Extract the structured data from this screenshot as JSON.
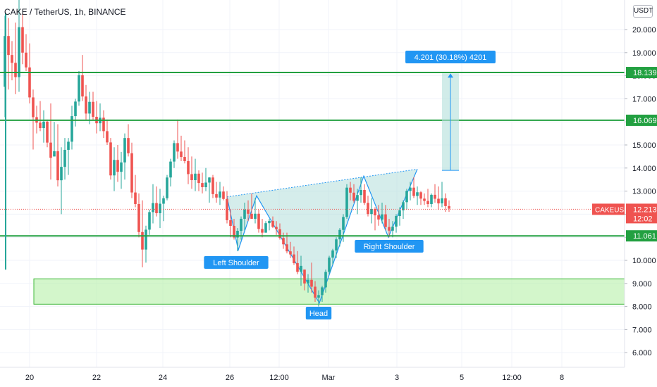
{
  "header": {
    "title": "CAKE / TetherUS, 1h, BINANCE",
    "currency_button": "USDT"
  },
  "chart_data": {
    "type": "candlestick",
    "title": "CAKE / TetherUS, 1h, BINANCE",
    "ylim": [
      5.5,
      21.2
    ],
    "y_ticks": [
      6,
      7,
      8,
      9,
      10,
      11,
      12,
      13,
      14,
      15,
      16,
      17,
      18,
      19,
      20
    ],
    "y_tick_labels": [
      "6.000",
      "7.000",
      "8.000",
      "9.000",
      "10.000",
      "11.000",
      "12.000",
      "13.000",
      "14.000",
      "15.000",
      "16.000",
      "17.000",
      "18.000",
      "19.000",
      "20.000"
    ],
    "x_tick_labels": [
      "20",
      "22",
      "24",
      "26",
      "12:00",
      "Mar",
      "3",
      "5",
      "12:00",
      "8"
    ],
    "horizontal_levels": [
      {
        "value": 18.139,
        "label": "18.139"
      },
      {
        "value": 16.069,
        "label": "16.069"
      },
      {
        "value": 11.061,
        "label": "11.061"
      }
    ],
    "support_zone": {
      "from": 8.1,
      "to": 9.2
    },
    "last_price": {
      "symbol": "CAKEUSDT",
      "value": 12.213,
      "label": "12.213",
      "countdown": "12:02"
    },
    "measure": {
      "from": 13.9,
      "to": 18.1,
      "label": "4.201 (30.18%) 4201"
    },
    "pattern_labels": [
      "Left Shoulder",
      "Head",
      "Right Shoulder"
    ],
    "candles": [
      [
        7,
        20.6,
        16.2
      ],
      [
        12,
        20.5,
        17.4
      ],
      [
        17,
        19.5,
        17.8
      ],
      [
        22,
        20.3,
        17.2
      ],
      [
        27,
        21.5,
        17.3
      ],
      [
        32,
        20.7,
        18.5
      ],
      [
        37,
        19.8,
        18.2
      ],
      [
        42,
        19.4,
        16.8
      ],
      [
        47,
        17.4,
        14.8
      ],
      [
        52,
        16.7,
        15.5
      ],
      [
        57,
        16.9,
        15.6
      ],
      [
        62,
        16.5,
        15.1
      ],
      [
        67,
        16.1,
        14.9
      ],
      [
        72,
        16.8,
        13.5
      ],
      [
        77,
        16.0,
        14.5
      ],
      [
        82,
        15.9,
        13.2
      ],
      [
        87,
        14.9,
        12.0
      ],
      [
        92,
        15.3,
        13.5
      ],
      [
        97,
        15.3,
        13.7
      ],
      [
        102,
        16.7,
        14.8
      ],
      [
        107,
        17.0,
        15.8
      ],
      [
        112,
        18.2,
        16.7
      ],
      [
        117,
        18.9,
        16.9
      ],
      [
        122,
        17.6,
        16.1
      ],
      [
        127,
        17.3,
        15.9
      ],
      [
        132,
        17.3,
        16.1
      ],
      [
        137,
        16.9,
        15.5
      ],
      [
        142,
        16.8,
        15.6
      ],
      [
        147,
        16.5,
        15.3
      ],
      [
        152,
        16.1,
        15.0
      ],
      [
        157,
        15.3,
        13.5
      ],
      [
        162,
        14.9,
        13.0
      ],
      [
        167,
        15.0,
        13.4
      ],
      [
        172,
        14.7,
        13.1
      ],
      [
        177,
        15.5,
        13.5
      ],
      [
        182,
        15.9,
        14.5
      ],
      [
        187,
        15.1,
        12.7
      ],
      [
        192,
        13.7,
        12.3
      ],
      [
        197,
        12.9,
        11.0
      ],
      [
        202,
        12.6,
        9.7
      ],
      [
        207,
        11.5,
        9.9
      ],
      [
        212,
        12.2,
        11.1
      ],
      [
        217,
        13.3,
        11.6
      ],
      [
        222,
        13.2,
        11.9
      ],
      [
        227,
        13.1,
        11.4
      ],
      [
        232,
        12.8,
        11.7
      ],
      [
        237,
        13.7,
        12.6
      ],
      [
        242,
        14.4,
        13.2
      ],
      [
        247,
        15.2,
        14.0
      ],
      [
        252,
        16.1,
        14.4
      ],
      [
        257,
        15.4,
        14.3
      ],
      [
        262,
        15.2,
        14.2
      ],
      [
        267,
        14.9,
        13.3
      ],
      [
        272,
        14.5,
        13.1
      ],
      [
        277,
        14.4,
        13.0
      ],
      [
        282,
        13.9,
        13.0
      ],
      [
        287,
        13.8,
        12.9
      ],
      [
        292,
        14.0,
        13.0
      ],
      [
        297,
        13.6,
        12.5
      ],
      [
        302,
        13.7,
        12.7
      ],
      [
        307,
        13.4,
        12.5
      ],
      [
        312,
        13.4,
        12.4
      ],
      [
        317,
        13.2,
        12.6
      ],
      [
        322,
        13.0,
        11.6
      ],
      [
        327,
        12.2,
        11.0
      ],
      [
        332,
        11.8,
        10.9
      ],
      [
        337,
        11.4,
        10.4
      ],
      [
        342,
        11.9,
        10.9
      ],
      [
        347,
        12.5,
        11.3
      ],
      [
        352,
        12.6,
        11.7
      ],
      [
        357,
        12.9,
        11.8
      ],
      [
        362,
        12.7,
        11.6
      ],
      [
        367,
        12.2,
        11.2
      ],
      [
        372,
        11.8,
        11.0
      ],
      [
        377,
        11.7,
        11.2
      ],
      [
        382,
        11.8,
        11.3
      ],
      [
        387,
        11.9,
        11.4
      ],
      [
        392,
        11.7,
        11.1
      ],
      [
        397,
        11.6,
        10.9
      ],
      [
        402,
        11.2,
        10.5
      ],
      [
        407,
        11.2,
        10.3
      ],
      [
        412,
        10.8,
        10.1
      ],
      [
        417,
        10.6,
        9.8
      ],
      [
        422,
        10.4,
        9.4
      ],
      [
        427,
        10.2,
        8.9
      ],
      [
        432,
        9.6,
        8.7
      ],
      [
        437,
        9.4,
        8.6
      ],
      [
        442,
        9.9,
        8.6
      ],
      [
        447,
        9.1,
        8.2
      ],
      [
        452,
        8.7,
        8.0
      ],
      [
        457,
        8.9,
        8.2
      ],
      [
        462,
        9.6,
        8.6
      ],
      [
        467,
        10.2,
        9.4
      ],
      [
        472,
        10.5,
        9.8
      ],
      [
        477,
        11.0,
        10.1
      ],
      [
        482,
        11.4,
        10.6
      ],
      [
        487,
        12.0,
        10.8
      ],
      [
        492,
        13.3,
        11.8
      ],
      [
        497,
        13.4,
        12.6
      ],
      [
        502,
        13.3,
        12.5
      ],
      [
        507,
        13.1,
        12.0
      ],
      [
        512,
        13.6,
        12.5
      ],
      [
        517,
        13.3,
        12.4
      ],
      [
        522,
        12.8,
        11.9
      ],
      [
        527,
        12.7,
        11.6
      ],
      [
        532,
        12.3,
        11.3
      ],
      [
        537,
        12.4,
        11.5
      ],
      [
        542,
        12.5,
        11.6
      ],
      [
        547,
        12.4,
        11.3
      ],
      [
        552,
        11.8,
        11.0
      ],
      [
        557,
        11.7,
        11.0
      ],
      [
        562,
        12.0,
        11.2
      ],
      [
        567,
        12.3,
        11.5
      ],
      [
        572,
        12.6,
        11.8
      ],
      [
        577,
        13.1,
        12.2
      ],
      [
        582,
        13.4,
        12.6
      ],
      [
        587,
        13.6,
        12.7
      ],
      [
        592,
        13.2,
        12.4
      ],
      [
        597,
        13.0,
        12.4
      ],
      [
        602,
        12.9,
        12.4
      ],
      [
        607,
        13.1,
        12.3
      ],
      [
        612,
        12.9,
        12.3
      ],
      [
        617,
        13.3,
        12.5
      ],
      [
        622,
        13.2,
        12.2
      ],
      [
        627,
        13.4,
        12.3
      ],
      [
        632,
        12.9,
        12.1
      ],
      [
        637,
        12.6,
        12.1
      ]
    ]
  },
  "colors": {
    "up": "#26a69a",
    "down": "#ef5350",
    "level_line": "#22a041",
    "zone_fill": "#b6f0a8",
    "zone_border": "#3fb83a",
    "pattern_fill": "#b2dfdb",
    "label_blue": "#2196f3",
    "last_price": "#ef5350"
  }
}
